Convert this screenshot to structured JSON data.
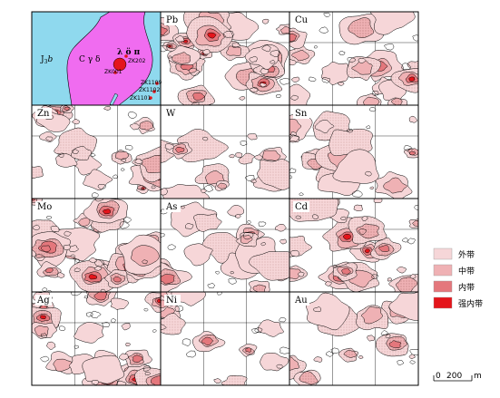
{
  "colors": {
    "outer": "#f6d6d8",
    "middle": "#efb1b4",
    "inner": "#e4777c",
    "strong": "#e4151b",
    "geo_bg": "#8fd9ee",
    "geo_intrusion": "#f06cf0",
    "grid": "#000000"
  },
  "geology": {
    "unit_west": "J",
    "unit_west_sub": "3",
    "unit_west_suffix": "b",
    "unit_intrusion": "C γ δ",
    "unit_dike": "λ ö π",
    "holes": [
      "ZK202",
      "ZK001",
      "ZK1109",
      "ZK1102",
      "ZK1101"
    ]
  },
  "panels": [
    {
      "id": "geology",
      "label": ""
    },
    {
      "id": "pb",
      "label": "Pb"
    },
    {
      "id": "cu",
      "label": "Cu"
    },
    {
      "id": "zn",
      "label": "Zn"
    },
    {
      "id": "w",
      "label": "W"
    },
    {
      "id": "sn",
      "label": "Sn"
    },
    {
      "id": "mo",
      "label": "Mo"
    },
    {
      "id": "as",
      "label": "As"
    },
    {
      "id": "cd",
      "label": "Cd"
    },
    {
      "id": "ag",
      "label": "Ag"
    },
    {
      "id": "ni",
      "label": "Ni"
    },
    {
      "id": "au",
      "label": "Au"
    }
  ],
  "legend": [
    {
      "label": "外带",
      "zone": "outer"
    },
    {
      "label": "中带",
      "zone": "middle"
    },
    {
      "label": "内带",
      "zone": "inner"
    },
    {
      "label": "强内带",
      "zone": "strong"
    }
  ],
  "scale": {
    "zero": "0",
    "value": "200",
    "unit": "m"
  }
}
